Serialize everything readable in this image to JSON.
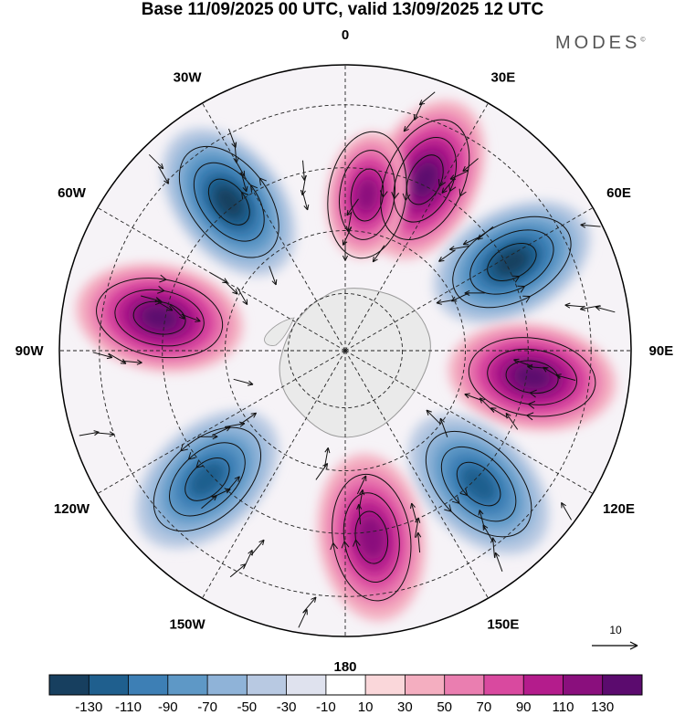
{
  "title": "Base 11/09/2025 00 UTC, valid 13/09/2025 12 UTC",
  "brand": "MODES",
  "brand_mark": "©",
  "longitude_labels": [
    "0",
    "30E",
    "60E",
    "90E",
    "120E",
    "150E",
    "180",
    "150W",
    "120W",
    "90W",
    "60W",
    "30W"
  ],
  "reference_vector": {
    "label": "10"
  },
  "colorbar": {
    "ticks": [
      "-130",
      "-110",
      "-90",
      "-70",
      "-50",
      "-30",
      "-10",
      "10",
      "30",
      "50",
      "70",
      "90",
      "110",
      "130"
    ],
    "colors": [
      "#173f5f",
      "#1f5f8e",
      "#3d7fb5",
      "#5e98c6",
      "#8fb3d8",
      "#b8c9e2",
      "#dfe2ee",
      "#ffffff",
      "#fad7da",
      "#f4aec0",
      "#ea7eb0",
      "#d9499f",
      "#b41c8c",
      "#8a0f7d",
      "#5b0b6e"
    ]
  },
  "chart_data": {
    "type": "heatmap",
    "projection": "south polar stereographic",
    "variable_range": [
      -130,
      130
    ],
    "anomaly_centers": [
      {
        "longitude": 25,
        "sign": "positive",
        "value": 130
      },
      {
        "longitude": 62,
        "sign": "negative",
        "value": -130
      },
      {
        "longitude": 98,
        "sign": "positive",
        "value": 130
      },
      {
        "longitude": 135,
        "sign": "negative",
        "value": -110
      },
      {
        "longitude": 172,
        "sign": "positive",
        "value": 110
      },
      {
        "longitude": -133,
        "sign": "negative",
        "value": -110
      },
      {
        "longitude": -80,
        "sign": "positive",
        "value": 130
      },
      {
        "longitude": -38,
        "sign": "negative",
        "value": -130
      },
      {
        "longitude": 8,
        "sign": "positive",
        "value": 110
      }
    ]
  }
}
